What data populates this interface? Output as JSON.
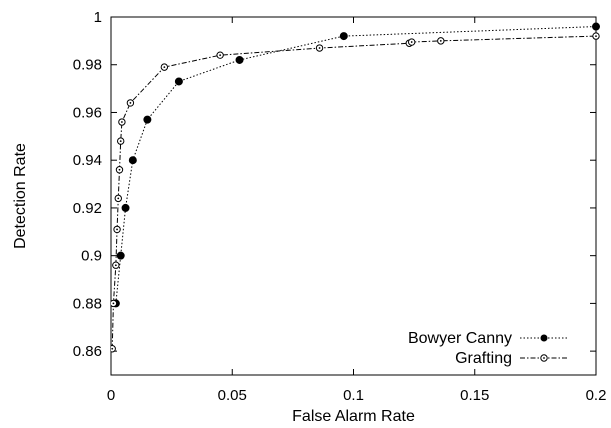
{
  "chart_data": {
    "type": "line",
    "title": "",
    "xlabel": "False Alarm Rate",
    "ylabel": "Detection Rate",
    "xlim": [
      0,
      0.2
    ],
    "ylim": [
      0.85,
      1.0
    ],
    "xticks": [
      0,
      0.05,
      0.1,
      0.15,
      0.2
    ],
    "xtick_labels": [
      "0",
      "0.05",
      "0.1",
      "0.15",
      "0.2"
    ],
    "yticks": [
      0.86,
      0.88,
      0.9,
      0.92,
      0.94,
      0.96,
      0.98,
      1.0
    ],
    "ytick_labels": [
      "0.86",
      "0.88",
      "0.9",
      "0.92",
      "0.94",
      "0.96",
      "0.98",
      "1"
    ],
    "grid": false,
    "legend_position": "bottom-right",
    "series": [
      {
        "name": "Bowyer Canny",
        "marker": "filled-circle",
        "line": "dotted",
        "color": "#000000",
        "x": [
          0.002,
          0.004,
          0.006,
          0.009,
          0.015,
          0.028,
          0.053,
          0.096,
          0.2
        ],
        "y": [
          0.88,
          0.9,
          0.92,
          0.94,
          0.957,
          0.973,
          0.982,
          0.992,
          0.996
        ]
      },
      {
        "name": "Grafting",
        "marker": "open-circle",
        "line": "dash-dot",
        "color": "#000000",
        "x": [
          0.0005,
          0.001,
          0.002,
          0.0025,
          0.003,
          0.0035,
          0.004,
          0.0045,
          0.008,
          0.022,
          0.045,
          0.086,
          0.123,
          0.124,
          0.136,
          0.2
        ],
        "y": [
          0.861,
          0.88,
          0.896,
          0.911,
          0.924,
          0.936,
          0.948,
          0.956,
          0.964,
          0.979,
          0.984,
          0.987,
          0.989,
          0.9895,
          0.99,
          0.992
        ]
      }
    ]
  }
}
